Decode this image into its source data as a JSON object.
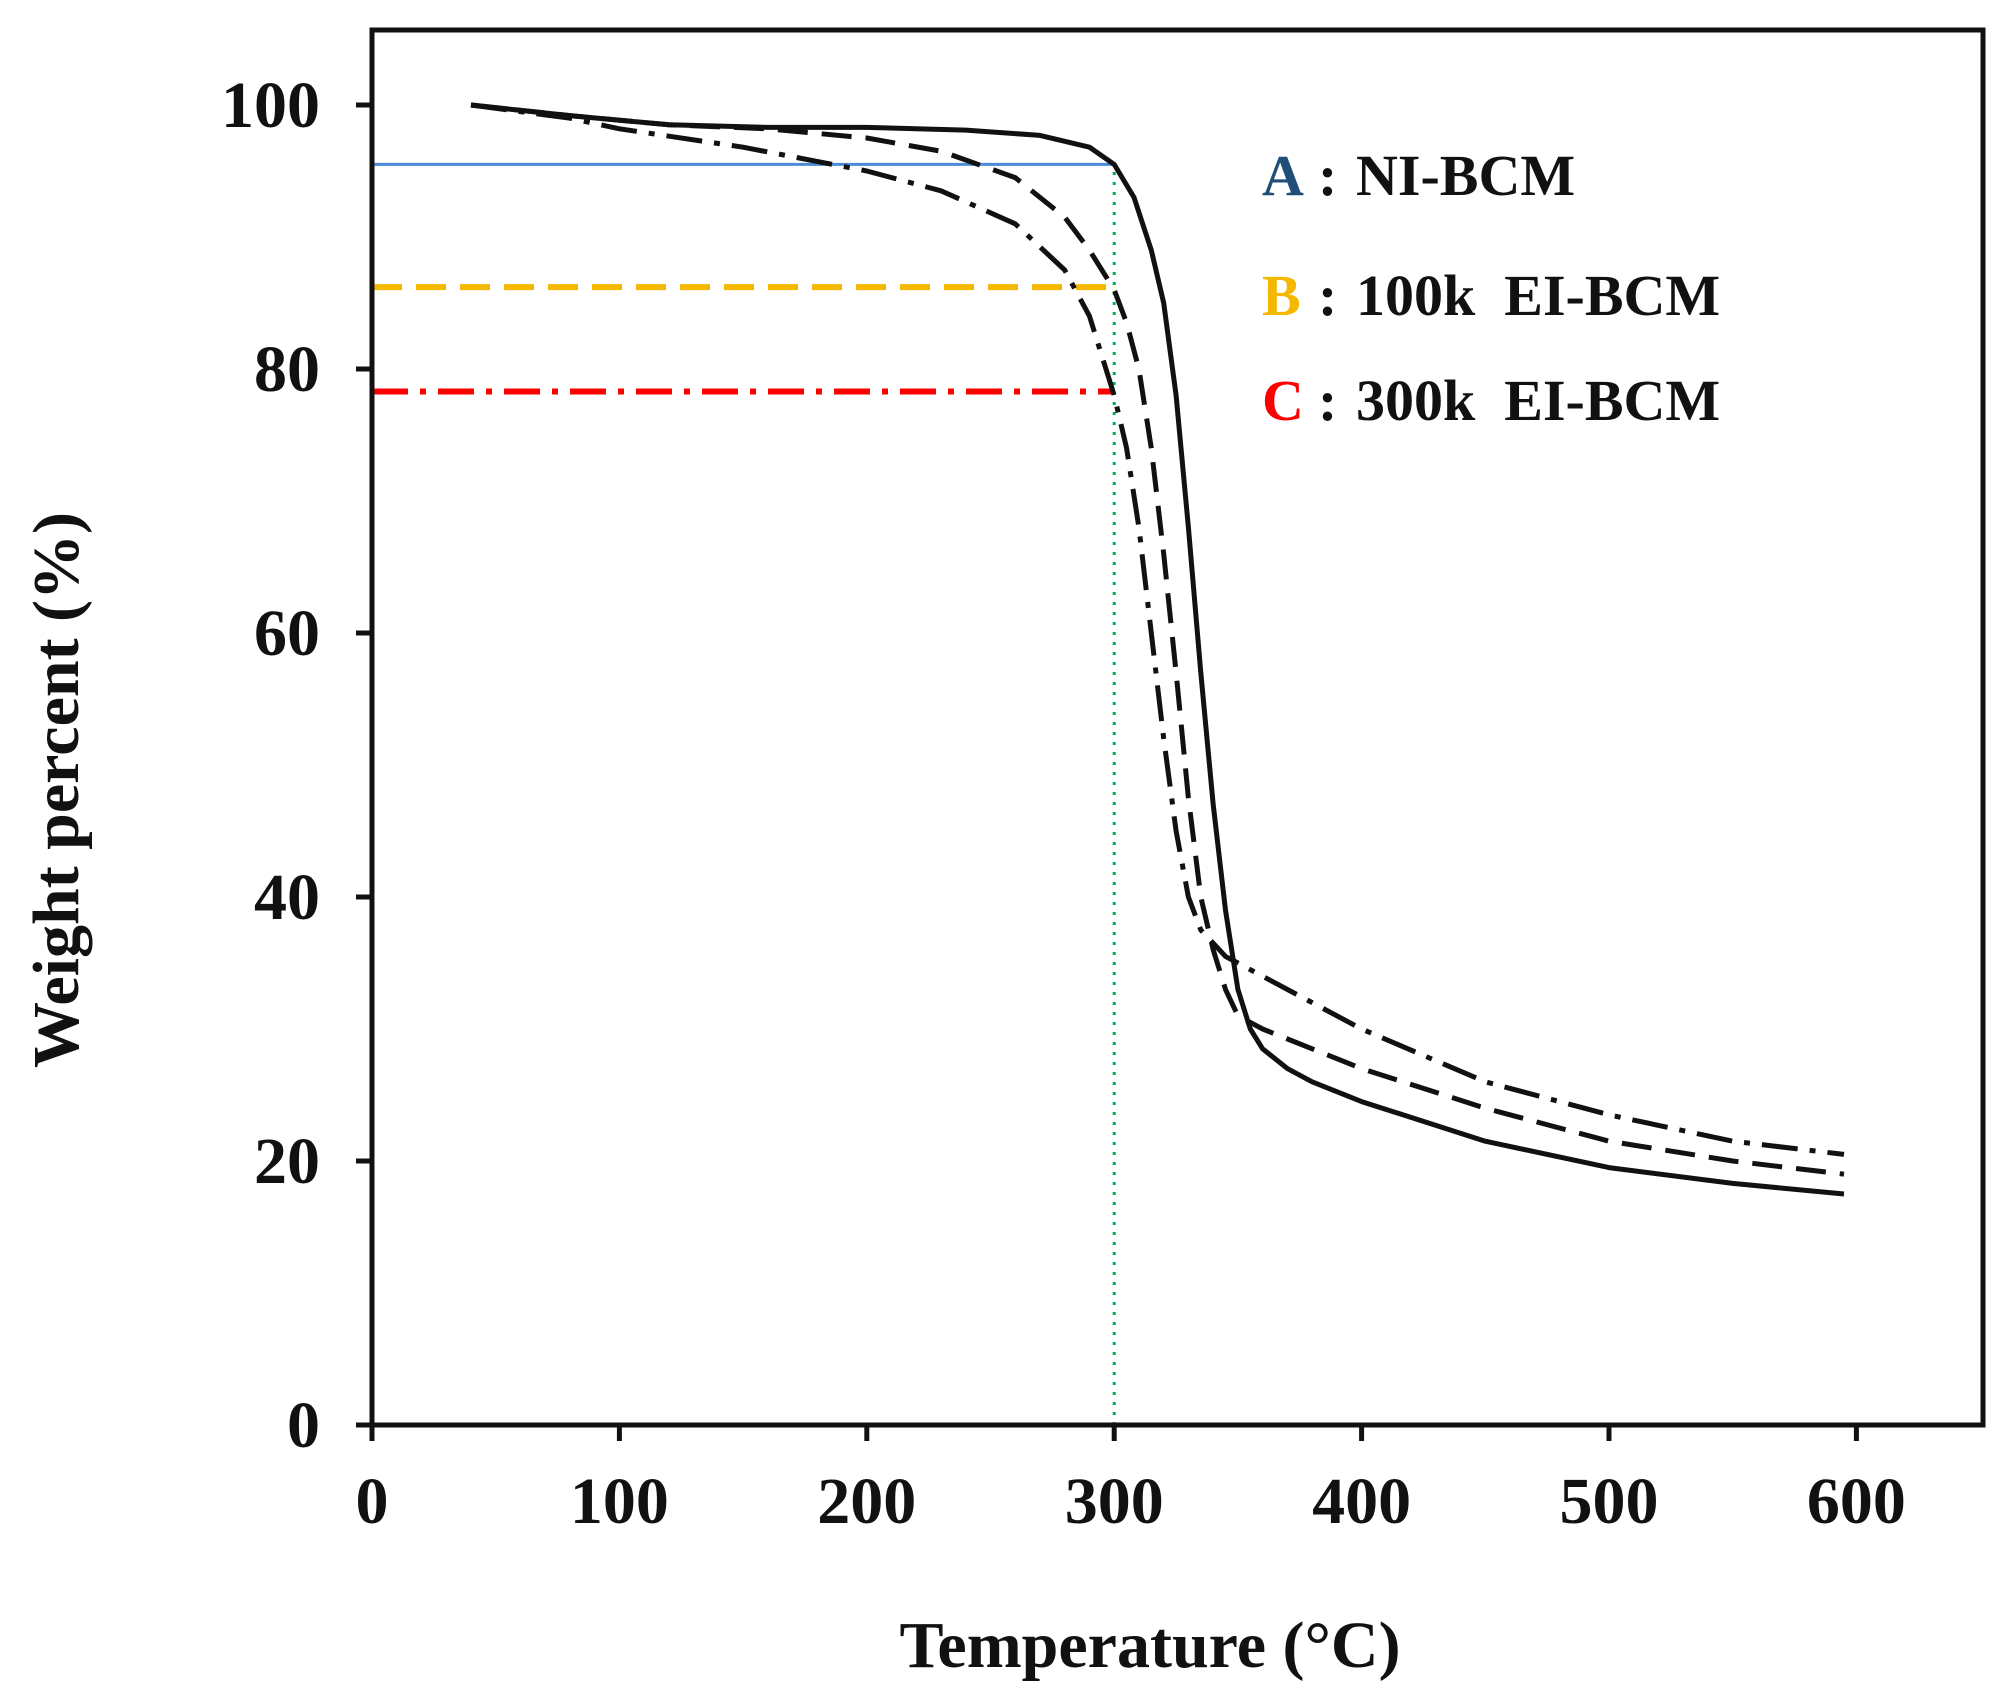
{
  "chart_data": {
    "type": "line",
    "title": "",
    "xlabel": "Temperature (°C)",
    "ylabel": "Weight percent  (%)",
    "xlim": [
      0,
      650
    ],
    "ylim": [
      0,
      105
    ],
    "xticks": [
      0,
      100,
      200,
      300,
      400,
      500,
      600
    ],
    "yticks": [
      0,
      20,
      40,
      60,
      80,
      100
    ],
    "grid": false,
    "legend_position": "top-right",
    "series": [
      {
        "id": "A",
        "name": "NI-BCM",
        "color": "#1f4e79",
        "line_style": "solid",
        "x": [
          40,
          80,
          120,
          160,
          200,
          240,
          270,
          290,
          300,
          308,
          315,
          320,
          325,
          330,
          335,
          340,
          345,
          350,
          355,
          360,
          370,
          380,
          400,
          450,
          500,
          550,
          595
        ],
        "y": [
          100,
          99.2,
          98.5,
          98.3,
          98.3,
          98.1,
          97.7,
          96.8,
          95.5,
          93,
          89,
          85,
          78,
          68,
          57,
          47,
          39,
          33,
          30,
          28.5,
          27,
          26,
          24.5,
          21.5,
          19.5,
          18.3,
          17.5
        ]
      },
      {
        "id": "B",
        "name": "100k EI-BCM",
        "color": "#f5b800",
        "line_style": "dashed",
        "x": [
          40,
          80,
          120,
          160,
          200,
          230,
          260,
          280,
          290,
          300,
          305,
          310,
          315,
          320,
          325,
          330,
          335,
          340,
          345,
          350,
          360,
          380,
          400,
          450,
          500,
          550,
          595
        ],
        "y": [
          100,
          99.2,
          98.5,
          98.2,
          97.5,
          96.5,
          94.5,
          91.5,
          89,
          86,
          83.5,
          80,
          74,
          66,
          57,
          47.5,
          40,
          36,
          33,
          31,
          30,
          28.5,
          27,
          24,
          21.5,
          20,
          19
        ]
      },
      {
        "id": "C",
        "name": "300k EI-BCM",
        "color": "#ff0000",
        "line_style": "dash-dot",
        "x": [
          40,
          80,
          100,
          150,
          200,
          230,
          260,
          280,
          290,
          300,
          305,
          310,
          315,
          320,
          325,
          330,
          335,
          340,
          345,
          350,
          360,
          380,
          400,
          450,
          500,
          550,
          595
        ],
        "y": [
          100,
          99,
          98.2,
          96.8,
          95,
          93.5,
          91,
          87.5,
          84,
          78,
          74,
          68,
          60,
          52,
          45,
          40,
          37.5,
          36.5,
          35.5,
          35,
          34,
          32,
          30,
          26,
          23.5,
          21.5,
          20.5
        ]
      }
    ],
    "reference_lines": [
      {
        "for": "A",
        "orientation": "horizontal",
        "y": 95.5,
        "x_from": 0,
        "x_to": 300,
        "color": "#4a8cd8",
        "line_style": "solid"
      },
      {
        "for": "B",
        "orientation": "horizontal",
        "y": 86.2,
        "x_from": 0,
        "x_to": 300,
        "color": "#f5b800",
        "line_style": "dashed"
      },
      {
        "for": "C",
        "orientation": "horizontal",
        "y": 78.3,
        "x_from": 0,
        "x_to": 300,
        "color": "#ff0000",
        "line_style": "dash-dot"
      },
      {
        "orientation": "vertical",
        "x": 300,
        "y_from": 0,
        "y_to": 95.5,
        "color": "#00b050",
        "line_style": "dotted"
      }
    ],
    "legend": [
      {
        "letter": "A",
        "sep": ":",
        "label": "NI-BCM",
        "letter_color": "#1f4e79"
      },
      {
        "letter": "B",
        "sep": ":",
        "label": "100k  EI-BCM",
        "letter_color": "#f5b800"
      },
      {
        "letter": "C",
        "sep": ":",
        "label": "300k  EI-BCM",
        "letter_color": "#ff0000"
      }
    ]
  }
}
